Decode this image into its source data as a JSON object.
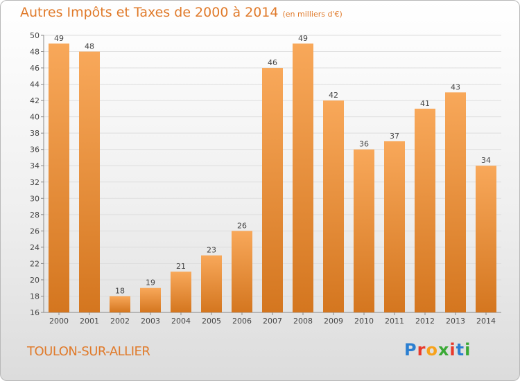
{
  "title": "Autres Impôts et Taxes de 2000 à 2014",
  "unit": "(en milliers d'€)",
  "city": "TOULON-SUR-ALLIER",
  "logo": {
    "text": "Proxiti",
    "colors": [
      "#2b7fd1",
      "#e8392b",
      "#f7a21b",
      "#3aa935",
      "#e8392b",
      "#2b7fd1",
      "#3aa935"
    ]
  },
  "colors": {
    "bar_light": "#f8a85a",
    "bar_dark": "#d4761f",
    "text": "#e07a2a",
    "grid": "#dddddd"
  },
  "chart_data": {
    "type": "bar",
    "categories": [
      "2000",
      "2001",
      "2002",
      "2003",
      "2004",
      "2005",
      "2006",
      "2007",
      "2008",
      "2009",
      "2010",
      "2011",
      "2012",
      "2013",
      "2014"
    ],
    "values": [
      49,
      48,
      18,
      19,
      21,
      23,
      26,
      46,
      49,
      42,
      36,
      37,
      41,
      43,
      34
    ],
    "ylim": [
      16,
      50
    ],
    "yticks": [
      16,
      18,
      20,
      22,
      24,
      26,
      28,
      30,
      32,
      34,
      36,
      38,
      40,
      42,
      44,
      46,
      48,
      50
    ],
    "title": "Autres Impôts et Taxes de 2000 à 2014",
    "xlabel": "",
    "ylabel": "",
    "grid": true
  }
}
